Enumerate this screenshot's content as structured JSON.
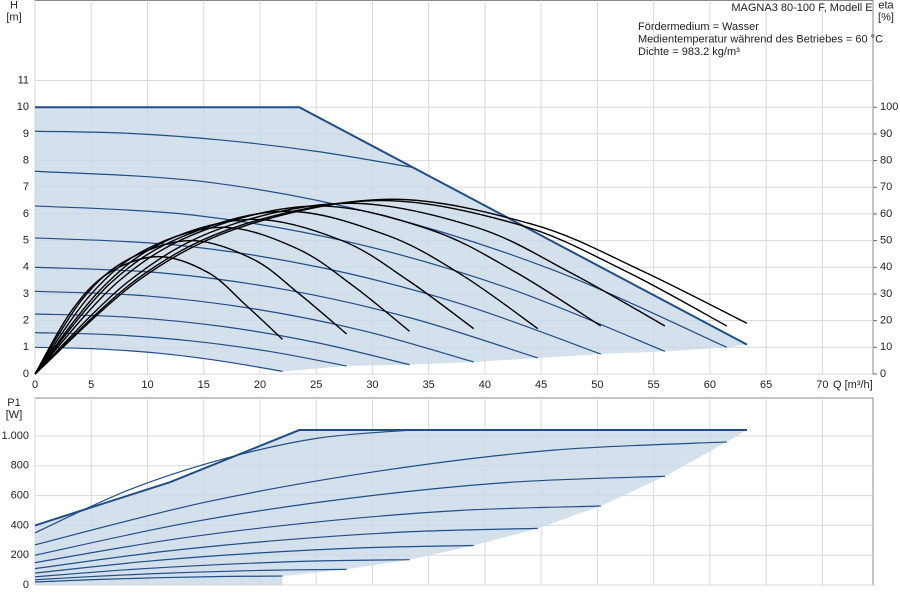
{
  "chart_data": [
    {
      "type": "line",
      "model_label": "MAGNA3 80-100 F, Modell E",
      "notes": [
        "Fördermedium = Wasser",
        "Medientemperatur während des Betriebes = 60 °C",
        "Dichte = 983.2 kg/m³"
      ],
      "x_label": "Q [m³/h]",
      "y_label": [
        "H",
        "[m]"
      ],
      "y2_label": [
        "eta",
        "[%]"
      ],
      "xlim": [
        0,
        74.5
      ],
      "xticks": [
        0,
        5,
        10,
        15,
        20,
        25,
        30,
        35,
        40,
        45,
        50,
        55,
        60,
        65,
        70
      ],
      "ylim": [
        0,
        14
      ],
      "yticks": [
        0,
        1,
        2,
        3,
        4,
        5,
        6,
        7,
        8,
        9,
        10,
        11
      ],
      "y2lim": [
        0,
        140
      ],
      "y2ticks": [
        0,
        10,
        20,
        30,
        40,
        50,
        60,
        70,
        80,
        90,
        100
      ],
      "grid": true,
      "fill_color": "#c9d8e7",
      "fill_to_axis": false,
      "series": [
        {
          "color": "#1f4e89",
          "line_width": 2,
          "smooth": false,
          "x": [
            0,
            23.5,
            63.3
          ],
          "values": [
            10,
            10,
            1.1
          ]
        },
        {
          "color": "#1f4e89",
          "line_width": 1.2,
          "x": [
            0,
            8.4,
            16.8,
            25.1,
            33.5
          ],
          "values": [
            9.1,
            9.02,
            8.76,
            8.34,
            7.75
          ]
        },
        {
          "color": "#1f4e89",
          "line_width": 1.2,
          "x": [
            0,
            15.4,
            30.8,
            46.1,
            61.5
          ],
          "values": [
            7.6,
            7.19,
            5.95,
            3.89,
            1.0
          ]
        },
        {
          "color": "#1f4e89",
          "line_width": 1.2,
          "x": [
            0,
            14,
            28,
            42,
            56
          ],
          "values": [
            6.3,
            5.96,
            4.94,
            3.23,
            0.85
          ]
        },
        {
          "color": "#1f4e89",
          "line_width": 1.2,
          "x": [
            0,
            12.6,
            25.2,
            37.7,
            50.3
          ],
          "values": [
            5.1,
            4.83,
            4.01,
            2.65,
            0.75
          ]
        },
        {
          "color": "#1f4e89",
          "line_width": 1.2,
          "x": [
            0,
            11.2,
            22.4,
            33.5,
            44.7
          ],
          "values": [
            4.0,
            3.79,
            3.15,
            2.09,
            0.6
          ]
        },
        {
          "color": "#1f4e89",
          "line_width": 1.2,
          "x": [
            0,
            9.8,
            19.5,
            29.3,
            39
          ],
          "values": [
            3.1,
            2.93,
            2.44,
            1.61,
            0.45
          ]
        },
        {
          "color": "#1f4e89",
          "line_width": 1.2,
          "x": [
            0,
            8.3,
            16.7,
            25,
            33.3
          ],
          "values": [
            2.25,
            2.13,
            1.78,
            1.18,
            0.35
          ]
        },
        {
          "color": "#1f4e89",
          "line_width": 1.2,
          "x": [
            0,
            6.9,
            13.9,
            20.8,
            27.7
          ],
          "values": [
            1.55,
            1.47,
            1.24,
            0.85,
            0.3
          ]
        },
        {
          "color": "#1f4e89",
          "line_width": 1.2,
          "x": [
            0,
            5.5,
            11,
            16.5,
            22
          ],
          "values": [
            1.0,
            0.94,
            0.78,
            0.49,
            0.1
          ]
        },
        {
          "axis": "y2",
          "color": "#000000",
          "line_width": 1.4,
          "x": [
            0,
            3.3,
            6.6,
            11,
            15.4,
            18.7,
            22
          ],
          "values": [
            0,
            24,
            38,
            44,
            38,
            26,
            13
          ]
        },
        {
          "axis": "y2",
          "color": "#000000",
          "line_width": 1.4,
          "x": [
            0,
            4.2,
            8.3,
            13.9,
            19.4,
            23.5,
            27.7
          ],
          "values": [
            0,
            28,
            43,
            50,
            43,
            30,
            15
          ]
        },
        {
          "axis": "y2",
          "color": "#000000",
          "line_width": 1.4,
          "x": [
            0,
            5,
            10,
            16.7,
            23.3,
            28.3,
            33.3
          ],
          "values": [
            0,
            30,
            47,
            55,
            47,
            33,
            16
          ]
        },
        {
          "axis": "y2",
          "color": "#000000",
          "line_width": 1.4,
          "x": [
            0,
            5.9,
            11.7,
            19.5,
            27.3,
            33.2,
            39
          ],
          "values": [
            0,
            32,
            50,
            58,
            50,
            35,
            17
          ]
        },
        {
          "axis": "y2",
          "color": "#000000",
          "line_width": 1.4,
          "x": [
            0,
            6.7,
            13.4,
            22.4,
            31.3,
            38,
            44.7
          ],
          "values": [
            0,
            34,
            52,
            61,
            52,
            37,
            17
          ]
        },
        {
          "axis": "y2",
          "color": "#000000",
          "line_width": 1.4,
          "x": [
            0,
            7.5,
            15.1,
            25.2,
            35.2,
            42.8,
            50.3
          ],
          "values": [
            0,
            35,
            54,
            63,
            54,
            38,
            18
          ]
        },
        {
          "axis": "y2",
          "color": "#000000",
          "line_width": 1.4,
          "x": [
            0,
            8.4,
            16.8,
            28,
            39.2,
            47.6,
            56
          ],
          "values": [
            0,
            35,
            55,
            64,
            55,
            38,
            18
          ]
        },
        {
          "axis": "y2",
          "color": "#000000",
          "line_width": 1.4,
          "x": [
            0,
            9.2,
            18.5,
            30.8,
            43,
            52.3,
            61.5
          ],
          "values": [
            0,
            36,
            56,
            65,
            56,
            39,
            18
          ]
        },
        {
          "axis": "y2",
          "color": "#000000",
          "line_width": 1.4,
          "x": [
            0,
            9.5,
            19,
            31.7,
            44.3,
            53.8,
            63.3
          ],
          "values": [
            0,
            36,
            56,
            65.5,
            56,
            39,
            19
          ]
        }
      ]
    },
    {
      "type": "line",
      "y_label": [
        "P1",
        "[W]"
      ],
      "xlim": [
        0,
        74.5
      ],
      "xticks": [
        0,
        5,
        10,
        15,
        20,
        25,
        30,
        35,
        40,
        45,
        50,
        55,
        60,
        65,
        70
      ],
      "show_xtick_labels": false,
      "ylim": [
        0,
        1255
      ],
      "yticks": [
        0,
        200,
        400,
        600,
        800,
        {
          "value": 1000,
          "label": "1.000"
        }
      ],
      "grid": true,
      "fill_color": "#c9d8e7",
      "fill_to_axis": true,
      "series": [
        {
          "color": "#1f4e89",
          "line_width": 2,
          "smooth": false,
          "x": [
            0,
            12,
            23.5,
            63.3
          ],
          "values": [
            400,
            690,
            1040,
            1040
          ]
        },
        {
          "color": "#1f4e89",
          "line_width": 1.2,
          "x": [
            0,
            8.4,
            16.8,
            25.1,
            33.5
          ],
          "values": [
            350,
            640,
            847,
            985,
            1040
          ]
        },
        {
          "color": "#1f4e89",
          "line_width": 1.2,
          "x": [
            0,
            15.4,
            30.8,
            46.1,
            61.5
          ],
          "values": [
            270,
            560,
            767,
            905,
            960
          ]
        },
        {
          "color": "#1f4e89",
          "line_width": 1.2,
          "x": [
            0,
            14,
            28,
            42,
            56
          ],
          "values": [
            200,
            423,
            582,
            688,
            730
          ]
        },
        {
          "color": "#1f4e89",
          "line_width": 1.2,
          "x": [
            0,
            12.6,
            25.2,
            37.7,
            50.3
          ],
          "values": [
            150,
            310,
            424,
            500,
            530
          ]
        },
        {
          "color": "#1f4e89",
          "line_width": 1.2,
          "x": [
            0,
            11.2,
            22.4,
            33.5,
            44.7
          ],
          "values": [
            110,
            223,
            304,
            358,
            380
          ]
        },
        {
          "color": "#1f4e89",
          "line_width": 1.2,
          "x": [
            0,
            9.8,
            19.5,
            29.3,
            39
          ],
          "values": [
            80,
            158,
            213,
            250,
            265
          ]
        },
        {
          "color": "#1f4e89",
          "line_width": 1.2,
          "x": [
            0,
            8.3,
            16.7,
            25,
            33.3
          ],
          "values": [
            55,
            103,
            138,
            161,
            170
          ]
        },
        {
          "color": "#1f4e89",
          "line_width": 1.2,
          "x": [
            0,
            6.9,
            13.9,
            20.8,
            27.7
          ],
          "values": [
            35,
            64,
            85,
            99,
            105
          ]
        },
        {
          "color": "#1f4e89",
          "line_width": 1.2,
          "x": [
            0,
            5.5,
            11,
            16.5,
            22
          ],
          "values": [
            20,
            37,
            49,
            57,
            60
          ]
        }
      ]
    }
  ]
}
